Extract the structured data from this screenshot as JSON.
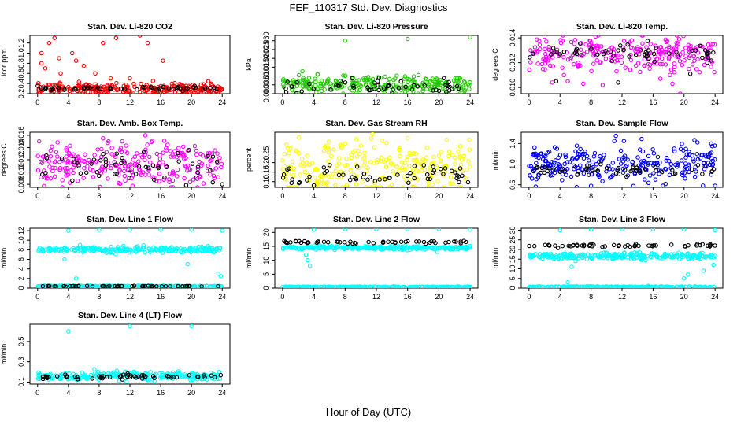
{
  "figure": {
    "title": "FEF_110317  Std. Dev. Diagnostics",
    "xlabel": "Hour of Day (UTC)"
  },
  "colors": {
    "red": "#ff0000",
    "green": "#22cc00",
    "magenta": "#ff00ff",
    "yellow": "#ffff00",
    "blue": "#0000ff",
    "cyan": "#00ffff",
    "black": "#000000"
  },
  "chart_data": [
    {
      "type": "scatter",
      "title": "Stan. Dev. Li-820 CO2",
      "xlabel": "",
      "ylabel": "Licor ppm",
      "xlim": [
        -1,
        25
      ],
      "ylim": [
        0.2,
        1.35
      ],
      "xticks": [
        0,
        4,
        8,
        12,
        16,
        20,
        24
      ],
      "yticks": [
        0.2,
        0.4,
        0.6,
        0.8,
        1.0,
        1.2
      ],
      "ytick_labels": [
        "0.2",
        "0.4",
        "0.6",
        "0.8",
        "1.0",
        "1.2"
      ],
      "grid": false,
      "series": [
        {
          "color": "red",
          "base": 0.3,
          "spread": 0.05,
          "points": [
            [
              0.5,
              1.0
            ],
            [
              0.5,
              0.8
            ],
            [
              1,
              0.7
            ],
            [
              1.5,
              1.2
            ],
            [
              2.2,
              1.3
            ],
            [
              2.8,
              0.9
            ],
            [
              3,
              0.6
            ],
            [
              4.5,
              1.0
            ],
            [
              5,
              0.85
            ],
            [
              6,
              0.75
            ],
            [
              7.5,
              0.6
            ],
            [
              8.5,
              1.2
            ],
            [
              9.5,
              0.5
            ],
            [
              10.2,
              1.3
            ],
            [
              12,
              0.5
            ],
            [
              13.3,
              1.35
            ],
            [
              14.3,
              1.2
            ],
            [
              16.3,
              0.85
            ],
            [
              15,
              0.45
            ]
          ]
        },
        {
          "color": "black",
          "base": 0.3,
          "spread": 0.02,
          "points": []
        }
      ]
    },
    {
      "type": "scatter",
      "title": "Stan. Dev. Li-820 Pressure",
      "xlabel": "",
      "ylabel": "kPa",
      "xlim": [
        -1,
        25
      ],
      "ylim": [
        0,
        0.033
      ],
      "xticks": [
        0,
        4,
        8,
        12,
        16,
        20,
        24
      ],
      "yticks": [
        0,
        0.005,
        0.01,
        0.015,
        0.02,
        0.025,
        0.03
      ],
      "ytick_labels": [
        "0.000",
        "0.005",
        "0.010",
        "0.015",
        "0.020",
        "0.025",
        "0.030"
      ],
      "grid": false,
      "series": [
        {
          "color": "green",
          "base": 0.005,
          "spread": 0.0025,
          "points": [
            [
              8,
              0.03
            ],
            [
              16,
              0.031
            ],
            [
              24,
              0.032
            ]
          ]
        },
        {
          "color": "black",
          "base": 0.004,
          "spread": 0.002,
          "points": []
        }
      ]
    },
    {
      "type": "scatter",
      "title": "Stan. Dev. Li-820 Temp.",
      "xlabel": "",
      "ylabel": "degrees C",
      "xlim": [
        -1,
        25
      ],
      "ylim": [
        0.0095,
        0.0142
      ],
      "xticks": [
        0,
        4,
        8,
        12,
        16,
        20,
        24
      ],
      "yticks": [
        0.01,
        0.012,
        0.014
      ],
      "ytick_labels": [
        "0.010",
        "0.012",
        "0.014"
      ],
      "grid": false,
      "series": [
        {
          "color": "magenta",
          "base": 0.0127,
          "spread": 0.0007,
          "points": [
            [
              2,
              0.0141
            ],
            [
              4.5,
              0.011
            ],
            [
              5,
              0.0105
            ],
            [
              9.5,
              0.0102
            ],
            [
              19.5,
              0.0095
            ],
            [
              3,
              0.0104
            ],
            [
              7,
              0.0103
            ],
            [
              18.5,
              0.0103
            ]
          ]
        },
        {
          "color": "black",
          "base": 0.0128,
          "spread": 0.0004,
          "points": [
            [
              3.5,
              0.0105
            ],
            [
              11.5,
              0.0104
            ],
            [
              20.8,
              0.0111
            ]
          ]
        }
      ]
    },
    {
      "type": "scatter",
      "title": "Stan. Dev. Amb. Box Temp.",
      "xlabel": "",
      "ylabel": "degrees C",
      "xlim": [
        -1,
        25
      ],
      "ylim": [
        0.0075,
        0.0165
      ],
      "xticks": [
        0,
        4,
        8,
        12,
        16,
        20,
        24
      ],
      "yticks": [
        0.008,
        0.01,
        0.012,
        0.014,
        0.016
      ],
      "ytick_labels": [
        "0.008",
        "0.010",
        "0.012",
        "0.014",
        "0.016"
      ],
      "grid": false,
      "series": [
        {
          "color": "magenta",
          "base": 0.011,
          "spread": 0.0018,
          "points": [
            [
              0.2,
              0.015
            ],
            [
              8.5,
              0.0155
            ],
            [
              14,
              0.016
            ],
            [
              11,
              0.015
            ]
          ]
        },
        {
          "color": "black",
          "base": 0.011,
          "spread": 0.0012,
          "points": [
            [
              24,
              0.008
            ]
          ]
        }
      ]
    },
    {
      "type": "scatter",
      "title": "Stan. Dev. Gas Stream RH",
      "xlabel": "",
      "ylabel": "percent",
      "xlim": [
        -1,
        25
      ],
      "ylim": [
        0.07,
        0.36
      ],
      "xticks": [
        0,
        4,
        8,
        12,
        16,
        20,
        24
      ],
      "yticks": [
        0.1,
        0.15,
        0.2,
        0.25
      ],
      "ytick_labels": [
        "0.10",
        "0.15",
        "0.20",
        "0.25"
      ],
      "grid": false,
      "series": [
        {
          "color": "yellow",
          "base": 0.17,
          "spread": 0.07,
          "points": [
            [
              11.5,
              0.35
            ],
            [
              16,
              0.33
            ],
            [
              21,
              0.32
            ],
            [
              8,
              0.3
            ]
          ]
        },
        {
          "color": "black",
          "base": 0.13,
          "spread": 0.03,
          "points": [
            [
              4,
              0.08
            ]
          ]
        }
      ]
    },
    {
      "type": "scatter",
      "title": "Stan. Dev. Sample Flow",
      "xlabel": "",
      "ylabel": "ml/min",
      "xlim": [
        -1,
        25
      ],
      "ylim": [
        0.55,
        1.62
      ],
      "xticks": [
        0,
        4,
        8,
        12,
        16,
        20,
        24
      ],
      "yticks": [
        0.6,
        1.0,
        1.4
      ],
      "ytick_labels": [
        "0.6",
        "1.0",
        "1.4"
      ],
      "grid": false,
      "series": [
        {
          "color": "blue",
          "base": 1.0,
          "spread": 0.18,
          "points": [
            [
              11,
              1.45
            ],
            [
              11.2,
              1.55
            ],
            [
              8,
              0.58
            ],
            [
              24,
              0.58
            ],
            [
              16.3,
              0.7
            ],
            [
              23.5,
              1.4
            ]
          ]
        },
        {
          "color": "black",
          "base": 0.88,
          "spread": 0.06,
          "points": []
        }
      ]
    },
    {
      "type": "scatter",
      "title": "Stan. Dev. Line 1 Flow",
      "xlabel": "",
      "ylabel": "ml/min",
      "xlim": [
        -1,
        25
      ],
      "ylim": [
        0,
        12.5
      ],
      "xticks": [
        0,
        4,
        8,
        12,
        16,
        20,
        24
      ],
      "yticks": [
        0,
        2,
        4,
        6,
        8,
        10,
        12
      ],
      "ytick_labels": [
        "0",
        "2",
        "4",
        "6",
        "8",
        "10",
        "12"
      ],
      "grid": false,
      "series": [
        {
          "color": "cyan",
          "base": 8.0,
          "spread": 0.3,
          "points": [
            [
              4,
              12
            ],
            [
              8,
              12.2
            ],
            [
              12,
              12.2
            ],
            [
              16,
              12.2
            ],
            [
              20,
              12.2
            ],
            [
              24,
              12
            ],
            [
              5,
              2
            ],
            [
              19.5,
              5
            ],
            [
              23.5,
              3
            ],
            [
              23.8,
              2.5
            ],
            [
              5.5,
              9
            ],
            [
              3.5,
              6
            ]
          ]
        },
        {
          "color": "cyan",
          "base": 0.4,
          "spread": 0.05,
          "points": []
        },
        {
          "color": "black",
          "base": 0.4,
          "spread": 0.05,
          "points": []
        }
      ]
    },
    {
      "type": "scatter",
      "title": "Stan. Dev. Line 2 Flow",
      "xlabel": "",
      "ylabel": "ml/min",
      "xlim": [
        -1,
        25
      ],
      "ylim": [
        0,
        21.5
      ],
      "xticks": [
        0,
        4,
        8,
        12,
        16,
        20,
        24
      ],
      "yticks": [
        0,
        5,
        10,
        15,
        20
      ],
      "ytick_labels": [
        "0",
        "5",
        "10",
        "15",
        "20"
      ],
      "grid": false,
      "series": [
        {
          "color": "cyan",
          "base": 14.5,
          "spread": 0.3,
          "points": [
            [
              4,
              21
            ],
            [
              8,
              21.2
            ],
            [
              12,
              21.2
            ],
            [
              16,
              21.2
            ],
            [
              20,
              21.2
            ],
            [
              24,
              21
            ],
            [
              3.2,
              10
            ],
            [
              3.5,
              8
            ],
            [
              3,
              12
            ],
            [
              19.8,
              13
            ]
          ]
        },
        {
          "color": "cyan",
          "base": 0.4,
          "spread": 0.08,
          "points": []
        },
        {
          "color": "black",
          "base": 16.5,
          "spread": 0.25,
          "points": []
        }
      ]
    },
    {
      "type": "scatter",
      "title": "Stan. Dev. Line 3 Flow",
      "xlabel": "",
      "ylabel": "ml/min",
      "xlim": [
        -1,
        25
      ],
      "ylim": [
        0,
        31
      ],
      "xticks": [
        0,
        4,
        8,
        12,
        16,
        20,
        24
      ],
      "yticks": [
        0,
        5,
        10,
        15,
        20,
        25,
        30
      ],
      "ytick_labels": [
        "0",
        "5",
        "10",
        "15",
        "20",
        "25",
        "30"
      ],
      "grid": false,
      "series": [
        {
          "color": "cyan",
          "base": 16.5,
          "spread": 0.8,
          "points": [
            [
              4,
              30
            ],
            [
              8,
              30.5
            ],
            [
              12,
              30.5
            ],
            [
              16,
              30.5
            ],
            [
              20,
              30.5
            ],
            [
              24,
              30
            ],
            [
              5,
              3
            ],
            [
              20,
              5
            ],
            [
              20.5,
              7
            ],
            [
              5.5,
              11
            ],
            [
              22.5,
              9
            ],
            [
              23.8,
              12
            ],
            [
              6,
              14
            ]
          ]
        },
        {
          "color": "cyan",
          "base": 0.6,
          "spread": 0.15,
          "points": []
        },
        {
          "color": "black",
          "base": 22,
          "spread": 0.4,
          "points": []
        }
      ]
    },
    {
      "type": "scatter",
      "title": "Stan. Dev. Line 4 (LT) Flow",
      "xlabel": "",
      "ylabel": "ml/min",
      "xlim": [
        -1,
        25
      ],
      "ylim": [
        0.08,
        0.67
      ],
      "xticks": [
        0,
        4,
        8,
        12,
        16,
        20,
        24
      ],
      "yticks": [
        0.1,
        0.3,
        0.5
      ],
      "ytick_labels": [
        "0.1",
        "0.3",
        "0.5"
      ],
      "grid": false,
      "series": [
        {
          "color": "cyan",
          "base": 0.16,
          "spread": 0.02,
          "points": [
            [
              4,
              0.6
            ],
            [
              12,
              0.65
            ],
            [
              20,
              0.65
            ]
          ]
        },
        {
          "color": "black",
          "base": 0.15,
          "spread": 0.015,
          "points": []
        }
      ]
    }
  ]
}
